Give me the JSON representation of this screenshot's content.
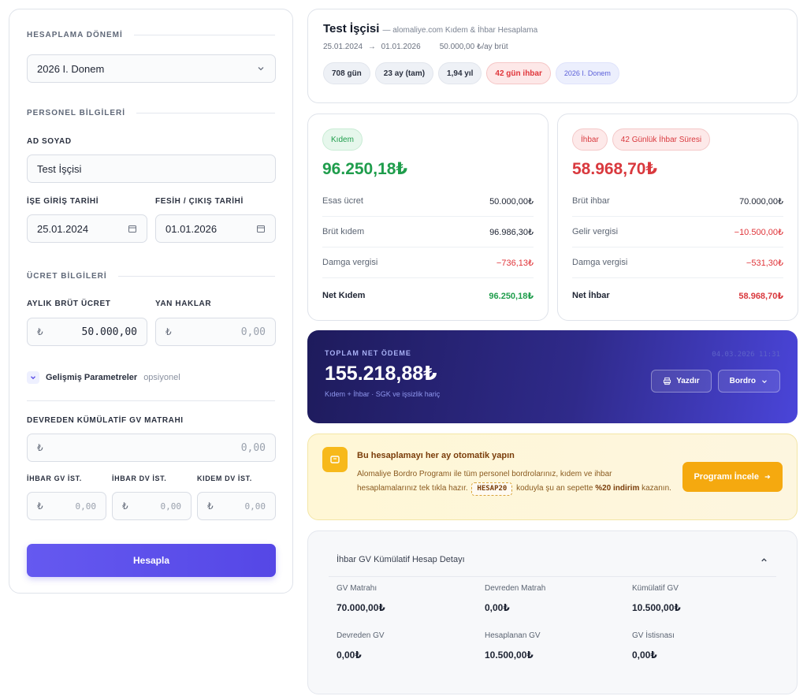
{
  "form": {
    "period_title": "HESAPLAMA DÖNEMİ",
    "period_value": "2026 I. Donem",
    "personnel_title": "PERSONEL BİLGİLERİ",
    "name_label": "AD SOYAD",
    "name_value": "Test İşçisi",
    "start_label": "İŞE GİRİŞ TARİHİ",
    "start_value": "25.01.2024",
    "end_label": "FESİH / ÇIKIŞ TARİHİ",
    "end_value": "01.01.2026",
    "wage_title": "ÜCRET BİLGİLERİ",
    "gross_label": "AYLIK BRÜT ÜCRET",
    "gross_value": "50.000,00",
    "extras_label": "YAN HAKLAR",
    "extras_value": "0,00",
    "currency": "₺",
    "advanced_label": "Gelişmiş Parametreler",
    "advanced_optional": "opsiyonel",
    "cumulative_label": "DEVREDEN KÜMÜLATİF GV MATRAHI",
    "cumulative_value": "0,00",
    "ihbar_gv_label": "İHBAR GV İST.",
    "ihbar_gv_value": "0,00",
    "ihbar_dv_label": "İHBAR DV İST.",
    "ihbar_dv_value": "0,00",
    "kidem_dv_label": "KIDEM DV İST.",
    "kidem_dv_value": "0,00",
    "submit_label": "Hesapla"
  },
  "summary": {
    "name": "Test İşçisi",
    "subtitle": "— alomaliye.com Kıdem & İhbar Hesaplama",
    "date_from": "25.01.2024",
    "arrow": "→",
    "date_to": "01.01.2026",
    "salary": "50.000,00 ₺/ay brüt",
    "chips": [
      "708 gün",
      "23 ay (tam)",
      "1,94 yıl",
      "42 gün ihbar",
      "2026 I. Donem"
    ]
  },
  "kidem": {
    "badge": "Kıdem",
    "total": "96.250,18₺",
    "rows": [
      {
        "label": "Esas ücret",
        "value": "50.000,00₺"
      },
      {
        "label": "Brüt kıdem",
        "value": "96.986,30₺"
      },
      {
        "label": "Damga vergisi",
        "value": "−736,13₺"
      }
    ],
    "net_label": "Net Kıdem",
    "net_value": "96.250,18₺"
  },
  "ihbar": {
    "badge": "İhbar",
    "badge2": "42 Günlük İhbar Süresi",
    "total": "58.968,70₺",
    "rows": [
      {
        "label": "Brüt ihbar",
        "value": "70.000,00₺"
      },
      {
        "label": "Gelir vergisi",
        "value": "−10.500,00₺"
      },
      {
        "label": "Damga vergisi",
        "value": "−531,30₺"
      }
    ],
    "net_label": "Net İhbar",
    "net_value": "58.968,70₺"
  },
  "total": {
    "label": "TOPLAM NET ÖDEME",
    "amount": "155.218,88₺",
    "sub": "Kıdem + İhbar · SGK ve işsizlik hariç",
    "timestamp": "04.03.2026 11:31",
    "print_label": "Yazdır",
    "payroll_label": "Bordro"
  },
  "promo": {
    "title": "Bu hesaplamayı her ay otomatik yapın",
    "text_before": "Alomaliye Bordro Programı ile tüm personel bordrolarınız, kıdem ve ihbar hesaplamalarınız tek tıkla hazır.",
    "code": "HESAP20",
    "text_middle": "koduyla şu an sepette",
    "discount": "%20 indirim",
    "text_after": "kazanın.",
    "button": "Programı İncele"
  },
  "detail": {
    "title": "İhbar GV Kümülatif Hesap Detayı",
    "items": [
      {
        "label": "GV Matrahı",
        "value": "70.000,00₺"
      },
      {
        "label": "Devreden Matrah",
        "value": "0,00₺"
      },
      {
        "label": "Kümülatif GV",
        "value": "10.500,00₺"
      },
      {
        "label": "Devreden GV",
        "value": "0,00₺"
      },
      {
        "label": "Hesaplanan GV",
        "value": "10.500,00₺"
      },
      {
        "label": "GV İstisnası",
        "value": "0,00₺"
      }
    ]
  },
  "colors": {
    "accent": "#5547e6",
    "success": "#1f9d4c",
    "danger": "#d9393e",
    "promo": "#f5a90f",
    "total_bg": "#2f2a8a"
  }
}
